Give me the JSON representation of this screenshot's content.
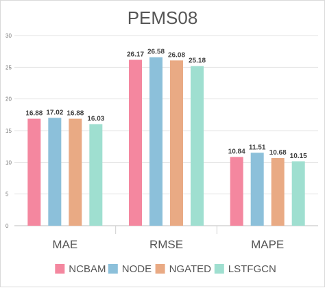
{
  "chart_data": {
    "type": "bar",
    "title": "PEMS08",
    "xlabel": "",
    "ylabel": "",
    "categories": [
      "MAE",
      "RMSE",
      "MAPE"
    ],
    "ylim": [
      0,
      30
    ],
    "yticks": [
      0,
      5,
      10,
      15,
      20,
      25,
      30
    ],
    "grid": true,
    "legend_position": "bottom",
    "series": [
      {
        "name": "NCBAM",
        "color": "#f4879f",
        "values": [
          16.88,
          26.17,
          10.84
        ],
        "labels": [
          "16.88",
          "26.17",
          "10.84"
        ]
      },
      {
        "name": "NODE",
        "color": "#8cc0da",
        "values": [
          17.02,
          26.58,
          11.51
        ],
        "labels": [
          "17.02",
          "26.58",
          "11.51"
        ]
      },
      {
        "name": "NGATED",
        "color": "#e9aa84",
        "values": [
          16.88,
          26.08,
          10.68
        ],
        "labels": [
          "16.88",
          "26.08",
          "10.68"
        ]
      },
      {
        "name": "LSTFGCN",
        "color": "#9fdfd0",
        "values": [
          16.03,
          25.18,
          10.15
        ],
        "labels": [
          "16.03",
          "25.18",
          "10.15"
        ]
      }
    ]
  }
}
